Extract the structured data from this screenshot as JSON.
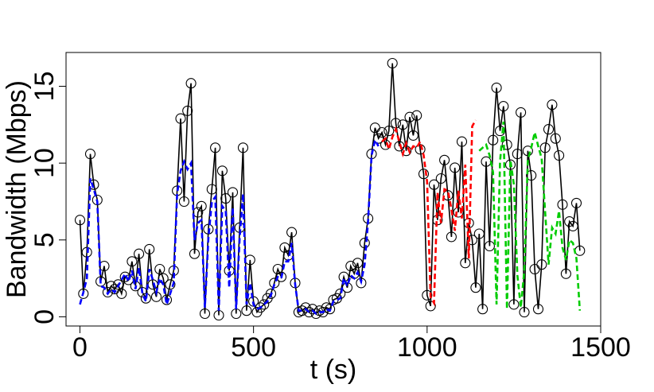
{
  "chart_data": {
    "type": "line",
    "title": "",
    "xlabel": "t (s)",
    "ylabel": "Bandwidth (Mbps)",
    "xlim": [
      -40,
      1500
    ],
    "ylim": [
      -0.6,
      17.2
    ],
    "x_ticks": [
      0,
      500,
      1000,
      1500
    ],
    "y_ticks": [
      0,
      5,
      10,
      15
    ],
    "grid": false,
    "legend": "none",
    "markers": "open circles on black trace",
    "series": [
      {
        "color": "#000000",
        "style": "solid with circle markers",
        "x": [
          0,
          10,
          20,
          30,
          40,
          50,
          60,
          70,
          80,
          90,
          100,
          110,
          120,
          130,
          140,
          150,
          160,
          170,
          180,
          190,
          200,
          210,
          220,
          230,
          240,
          250,
          260,
          270,
          280,
          290,
          300,
          310,
          320,
          330,
          340,
          350,
          360,
          370,
          380,
          390,
          400,
          410,
          420,
          430,
          440,
          450,
          460,
          470,
          480,
          490,
          500,
          510,
          520,
          530,
          540,
          550,
          560,
          570,
          580,
          590,
          600,
          610,
          620,
          630,
          640,
          650,
          660,
          670,
          680,
          690,
          700,
          710,
          720,
          730,
          740,
          750,
          760,
          770,
          780,
          790,
          800,
          810,
          820,
          830,
          840,
          850,
          860,
          870,
          880,
          890,
          900,
          910,
          920,
          930,
          940,
          950,
          960,
          970,
          980,
          990,
          1000,
          1010,
          1020,
          1030,
          1040,
          1050,
          1060,
          1070,
          1080,
          1090,
          1100,
          1110,
          1120,
          1130,
          1140,
          1150,
          1160,
          1170,
          1180,
          1190,
          1200,
          1210,
          1220,
          1230,
          1240,
          1250,
          1260,
          1270,
          1280,
          1290,
          1300,
          1310,
          1320,
          1330,
          1340,
          1350,
          1360,
          1370,
          1380,
          1390,
          1400,
          1410,
          1420,
          1430,
          1440
        ],
        "y": [
          6.3,
          1.5,
          4.2,
          10.6,
          8.6,
          7.6,
          2.3,
          3.3,
          1.6,
          2.0,
          1.8,
          2.1,
          1.5,
          2.6,
          2.4,
          3.6,
          2.0,
          4.1,
          1.6,
          1.2,
          4.4,
          2.1,
          1.3,
          3.1,
          2.5,
          1.1,
          2.1,
          3.0,
          8.2,
          12.9,
          7.5,
          13.4,
          15.2,
          4.1,
          6.8,
          7.2,
          0.2,
          5.7,
          8.3,
          11.0,
          0.1,
          9.5,
          7.7,
          3.0,
          8.1,
          0.2,
          5.8,
          11.0,
          0.4,
          3.7,
          1.0,
          0.3,
          0.6,
          0.8,
          1.2,
          1.5,
          2.2,
          3.1,
          2.6,
          4.5,
          4.0,
          5.5,
          2.2,
          0.3,
          0.4,
          0.6,
          0.3,
          0.5,
          0.2,
          0.4,
          0.3,
          0.6,
          0.5,
          1.1,
          1.2,
          1.5,
          2.6,
          1.9,
          3.3,
          2.8,
          3.5,
          2.2,
          4.8,
          6.4,
          10.6,
          12.3,
          11.6,
          12.0,
          11.2,
          12.1,
          16.5,
          12.6,
          11.1,
          12.5,
          10.8,
          13.0,
          11.8,
          13.1,
          10.9,
          9.3,
          1.4,
          0.7,
          8.6,
          6.3,
          9.0,
          10.2,
          7.9,
          5.2,
          9.7,
          6.8,
          11.4,
          3.5,
          6.1,
          5.0,
          1.9,
          5.4,
          0.5,
          10.1,
          4.6,
          11.5,
          14.9,
          12.1,
          13.7,
          11.2,
          9.9,
          0.8,
          10.6,
          13.3,
          0.3,
          10.8,
          9.2,
          3.1,
          0.5,
          3.4,
          11.0,
          12.2,
          13.8,
          11.6,
          10.5,
          7.3,
          2.8,
          6.2,
          5.9,
          7.4,
          4.3
        ]
      },
      {
        "color": "#0000ff",
        "style": "dashed",
        "x": [
          0,
          10,
          20,
          30,
          40,
          50,
          60,
          70,
          80,
          90,
          100,
          110,
          120,
          130,
          140,
          150,
          160,
          170,
          180,
          190,
          200,
          210,
          220,
          230,
          240,
          250,
          260,
          270,
          280,
          290,
          300,
          310,
          320,
          330,
          340,
          350,
          360,
          370,
          380,
          390,
          400,
          410,
          420,
          430,
          440,
          450,
          460,
          470,
          480,
          490,
          500,
          510,
          520,
          530,
          540,
          550,
          560,
          570,
          580,
          590,
          600,
          610,
          620,
          630,
          640,
          650,
          660,
          670,
          680,
          690,
          700,
          710,
          720,
          730,
          740,
          750,
          760,
          770,
          780,
          790,
          800,
          810,
          820,
          830,
          840,
          850,
          860
        ],
        "y": [
          0.8,
          1.6,
          2.5,
          9.0,
          8.3,
          7.5,
          2.0,
          1.9,
          1.5,
          1.8,
          1.6,
          2.0,
          2.4,
          2.8,
          2.3,
          3.0,
          1.8,
          3.2,
          1.5,
          1.0,
          3.1,
          2.4,
          1.6,
          2.5,
          2.1,
          0.8,
          1.5,
          2.2,
          8.0,
          9.5,
          10.1,
          9.6,
          10.0,
          5.0,
          6.1,
          6.3,
          0.6,
          5.1,
          7.5,
          7.8,
          0.4,
          7.2,
          6.9,
          1.9,
          7.1,
          0.5,
          5.1,
          8.0,
          0.8,
          2.2,
          0.8,
          0.5,
          0.6,
          0.8,
          1.0,
          1.4,
          2.1,
          2.6,
          2.5,
          3.6,
          3.6,
          4.8,
          2.1,
          0.4,
          0.4,
          0.5,
          0.3,
          0.4,
          0.2,
          0.3,
          0.3,
          0.5,
          0.4,
          1.0,
          1.1,
          1.2,
          2.5,
          2.0,
          2.7,
          2.5,
          2.9,
          2.3,
          3.4,
          6.2,
          10.5,
          11.5,
          11.1
        ]
      },
      {
        "color": "#ff0000",
        "style": "dashed",
        "x": [
          870,
          880,
          890,
          900,
          910,
          920,
          930,
          940,
          950,
          960,
          970,
          980,
          990,
          1000,
          1010,
          1020,
          1030,
          1040,
          1050,
          1060,
          1070,
          1080,
          1090,
          1100,
          1110,
          1120,
          1130,
          1140
        ],
        "y": [
          11.4,
          11.6,
          10.9,
          11.7,
          12.2,
          11.4,
          10.6,
          11.3,
          10.7,
          11.1,
          11.0,
          11.4,
          10.5,
          8.8,
          1.3,
          0.9,
          8.1,
          6.1,
          8.3,
          8.2,
          7.0,
          5.6,
          8.2,
          6.4,
          9.9,
          3.8,
          12.4,
          12.8
        ]
      },
      {
        "color": "#00cc00",
        "style": "dashed",
        "x": [
          1150,
          1160,
          1170,
          1180,
          1190,
          1200,
          1210,
          1220,
          1230,
          1240,
          1250,
          1260,
          1270,
          1280,
          1290,
          1300,
          1310,
          1320,
          1330,
          1340,
          1350,
          1360,
          1370,
          1380,
          1390,
          1400,
          1410,
          1420,
          1430,
          1440
        ],
        "y": [
          10.8,
          11.0,
          11.2,
          10.5,
          9.4,
          0.8,
          10.1,
          12.7,
          0.5,
          10.2,
          8.6,
          2.7,
          0.6,
          3.0,
          10.2,
          11.0,
          12.0,
          11.1,
          10.3,
          6.8,
          3.4,
          5.8,
          5.4,
          6.9,
          4.5,
          3.7,
          5.0,
          4.8,
          3.8,
          0.4
        ]
      }
    ]
  }
}
